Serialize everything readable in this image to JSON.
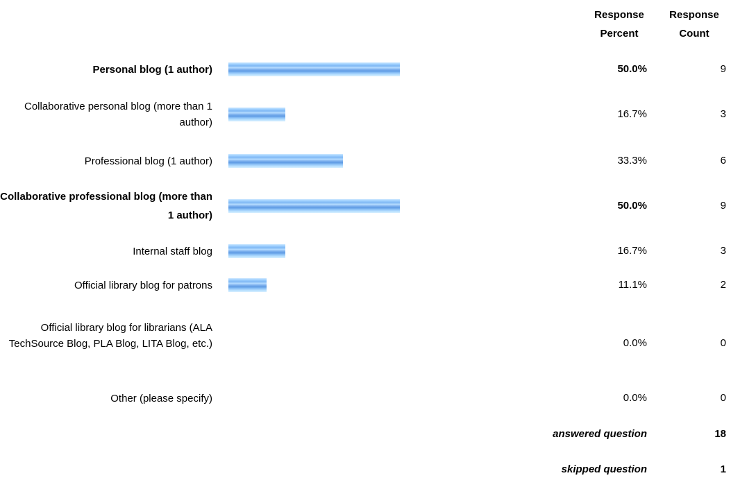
{
  "headers": {
    "percent_line1": "Response",
    "percent_line2": "Percent",
    "count_line1": "Response",
    "count_line2": "Count"
  },
  "chart_data": {
    "type": "bar",
    "categories": [
      "Personal blog (1 author)",
      "Collaborative personal blog (more than 1 author)",
      "Professional blog (1 author)",
      "Collaborative professional blog (more than 1 author)",
      "Internal staff blog",
      "Official library blog for patrons",
      "Official library blog for librarians (ALA TechSource Blog, PLA Blog, LITA Blog, etc.)",
      "Other (please specify)"
    ],
    "values": [
      50.0,
      16.7,
      33.3,
      50.0,
      16.7,
      11.1,
      0.0,
      0.0
    ],
    "percent_labels": [
      "50.0%",
      "16.7%",
      "33.3%",
      "50.0%",
      "16.7%",
      "11.1%",
      "0.0%",
      "0.0%"
    ],
    "counts": [
      "9",
      "3",
      "6",
      "9",
      "3",
      "2",
      "0",
      "0"
    ],
    "bold_rows": [
      true,
      false,
      false,
      true,
      false,
      false,
      false,
      false
    ],
    "xlim": [
      0,
      50
    ],
    "bar_color": "#7fb8f4"
  },
  "summary": {
    "answered_label": "answered question",
    "answered_value": "18",
    "skipped_label": "skipped question",
    "skipped_value": "1"
  }
}
